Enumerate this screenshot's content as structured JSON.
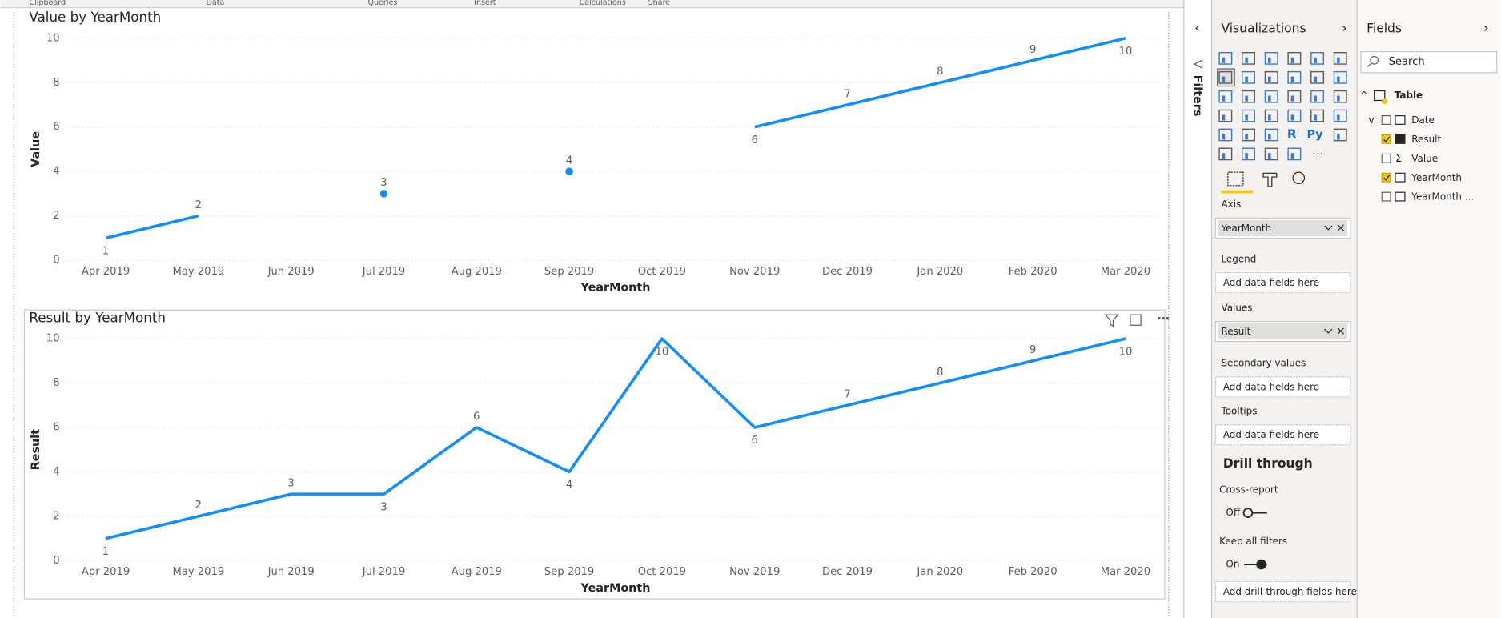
{
  "ribbon": [
    "Clipboard",
    "Data",
    "Queries",
    "Insert",
    "Calculations",
    "Share"
  ],
  "chart_data": [
    {
      "type": "line",
      "title": "Value by YearMonth",
      "x_label": "YearMonth",
      "y_label": "Value",
      "categories": [
        "Apr 2019",
        "May 2019",
        "Jun 2019",
        "Jul 2019",
        "Aug 2019",
        "Sep 2019",
        "Oct 2019",
        "Nov 2019",
        "Dec 2019",
        "Jan 2020",
        "Feb 2020",
        "Mar 2020"
      ],
      "values": [
        1,
        2,
        null,
        3,
        null,
        4,
        null,
        6,
        7,
        8,
        9,
        10
      ],
      "color": "#118DFF",
      "ylim": [
        0,
        10
      ],
      "yticks": [
        0,
        2,
        4,
        6,
        8,
        10
      ],
      "grid": true
    },
    {
      "type": "line",
      "title": "Result by YearMonth",
      "x_label": "YearMonth",
      "y_label": "Result",
      "categories": [
        "Apr 2019",
        "May 2019",
        "Jun 2019",
        "Jul 2019",
        "Aug 2019",
        "Sep 2019",
        "Oct 2019",
        "Nov 2019",
        "Dec 2019",
        "Jan 2020",
        "Feb 2020",
        "Mar 2020"
      ],
      "values": [
        1,
        2,
        3,
        3,
        6,
        4,
        10,
        6,
        7,
        8,
        9,
        10
      ],
      "color": "#118DFF",
      "ylim": [
        0,
        10
      ],
      "yticks": [
        0,
        2,
        4,
        6,
        8,
        10
      ],
      "grid": true
    }
  ],
  "filters": "Filters",
  "visualizations": {
    "title": "Visualizations",
    "icon_texts": [
      "R",
      "Py"
    ],
    "wells": [
      {
        "label": "Axis",
        "field": "YearMonth"
      },
      {
        "label": "Legend",
        "placeholder": "Add data fields here"
      },
      {
        "label": "Values",
        "field": "Result"
      },
      {
        "label": "Secondary values",
        "placeholder": "Add data fields here"
      },
      {
        "label": "Tooltips",
        "placeholder": "Add data fields here"
      }
    ],
    "drill_through": {
      "title": "Drill through",
      "cross_report": {
        "label": "Cross-report",
        "state": "Off"
      },
      "keep_all_filters": {
        "label": "Keep all filters",
        "state": "On"
      },
      "placeholder": "Add drill-through fields here"
    }
  },
  "fields": {
    "title": "Fields",
    "search": "Search",
    "table": "Table",
    "items": [
      {
        "name": "Date",
        "checked": false
      },
      {
        "name": "Result",
        "checked": true
      },
      {
        "name": "Value",
        "checked": false
      },
      {
        "name": "YearMonth",
        "checked": true
      },
      {
        "name": "YearMonth ...",
        "checked": false
      }
    ]
  }
}
